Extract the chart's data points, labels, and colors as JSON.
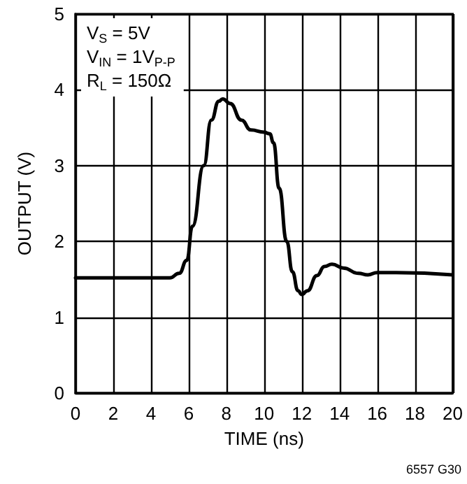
{
  "chart_data": {
    "type": "line",
    "xlabel": "TIME (ns)",
    "ylabel": "OUTPUT (V)",
    "annotations": [
      "V$_{S}$ = 5V",
      "V$_{IN}$ = 1V$_{P-P}$",
      "R$_{L}$ = 150Ω",
      "6557 G30"
    ],
    "xlim": [
      0,
      20
    ],
    "xticks": [
      0,
      2,
      4,
      6,
      8,
      10,
      12,
      14,
      16,
      18,
      20
    ],
    "ylim": [
      0,
      5
    ],
    "yticks": [
      0,
      1,
      2,
      3,
      4,
      5
    ],
    "grid": true,
    "marker": "none",
    "line_style": "solid",
    "series": [
      {
        "color": "#000000",
        "x": [
          0,
          5,
          5.5,
          5.9,
          6.2,
          6.8,
          7.2,
          7.6,
          7.8,
          8.2,
          8.8,
          9.3,
          10,
          10.3,
          10.5,
          10.8,
          11.2,
          11.5,
          11.8,
          12,
          12.3,
          12.8,
          13.2,
          13.6,
          14.2,
          15,
          15.5,
          16,
          17,
          20
        ],
        "values": [
          1.52,
          1.52,
          1.58,
          1.75,
          2.2,
          3.0,
          3.6,
          3.85,
          3.88,
          3.82,
          3.6,
          3.47,
          3.44,
          3.42,
          3.3,
          2.7,
          2.0,
          1.6,
          1.35,
          1.3,
          1.35,
          1.55,
          1.67,
          1.7,
          1.65,
          1.58,
          1.56,
          1.59,
          1.59,
          1.56
        ]
      }
    ]
  }
}
